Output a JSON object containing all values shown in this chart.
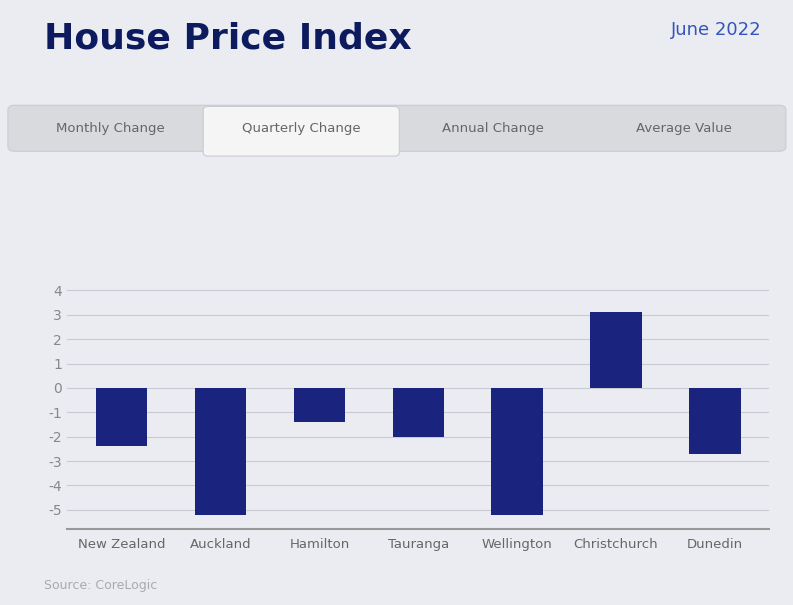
{
  "title": "House Price Index",
  "subtitle": "June 2022",
  "categories": [
    "New Zealand",
    "Auckland",
    "Hamilton",
    "Tauranga",
    "Wellington",
    "Christchurch",
    "Dunedin"
  ],
  "values": [
    -2.4,
    -5.2,
    -1.4,
    -2.0,
    -5.2,
    3.1,
    -2.7
  ],
  "bar_color": "#1a237e",
  "background_color": "#eaecf2",
  "tab_labels": [
    "Monthly Change",
    "Quarterly Change",
    "Annual Change",
    "Average Value"
  ],
  "active_tab": 1,
  "active_tab_color": "#f5f5f5",
  "inactive_tab_color": "#d8dade",
  "tab_border_color": "#c8ccd2",
  "tab_text_color": "#666666",
  "title_color": "#0d1b5e",
  "subtitle_color": "#3355bb",
  "source_text": "Source: CoreLogic",
  "ylim": [
    -5.8,
    4.5
  ],
  "yticks": [
    -5,
    -4,
    -3,
    -2,
    -1,
    0,
    1,
    2,
    3,
    4
  ],
  "grid_color": "#c8ccd2",
  "tick_label_color": "#888888",
  "xticklabel_color": "#666666",
  "title_fontsize": 26,
  "subtitle_fontsize": 13,
  "source_fontsize": 9
}
